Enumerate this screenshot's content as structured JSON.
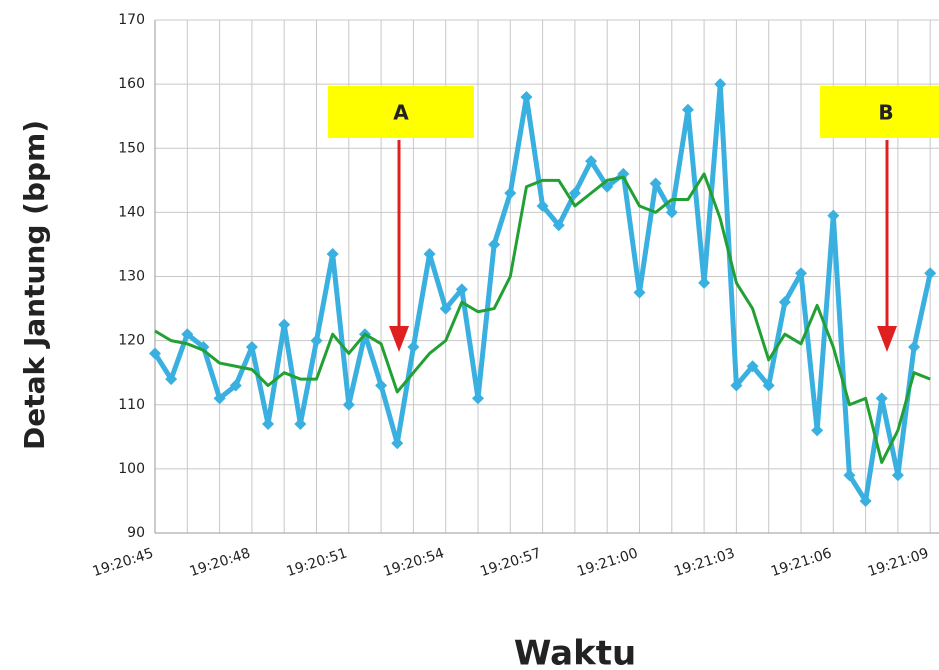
{
  "chart_data": {
    "type": "line",
    "ylabel": "Detak Jantung (bpm)",
    "xlabel": "Waktu",
    "categories": [
      "19:20:45",
      null,
      null,
      null,
      null,
      null,
      "19:20:48",
      null,
      null,
      null,
      null,
      null,
      "19:20:51",
      null,
      null,
      null,
      null,
      null,
      "19:20:54",
      null,
      null,
      null,
      null,
      null,
      "19:20:57",
      null,
      null,
      null,
      null,
      null,
      "19:21:00",
      null,
      null,
      null,
      null,
      null,
      "19:21:03",
      null,
      null,
      null,
      null,
      null,
      "19:21:06",
      null,
      null,
      null,
      null,
      null,
      "19:21:09"
    ],
    "series": [
      {
        "name": null,
        "color": "#3ab0e0",
        "values": [
          118,
          114,
          121,
          119,
          111,
          113,
          119,
          107,
          122.5,
          107,
          120,
          133.5,
          110,
          121,
          113,
          104,
          119,
          133.5,
          125,
          128,
          111,
          135,
          143,
          158,
          141,
          138,
          143,
          148,
          144,
          146,
          127.5,
          144.5,
          140,
          156,
          129,
          160,
          113,
          116,
          113,
          126,
          130.5,
          106,
          139.5,
          99,
          95,
          111,
          99,
          119,
          130.5
        ]
      },
      {
        "name": null,
        "color": "#22a033",
        "values": [
          121.5,
          120,
          119.5,
          118.5,
          116.5,
          116,
          115.5,
          113,
          115,
          114,
          114,
          121,
          118,
          121,
          119.5,
          112,
          115,
          118,
          120,
          126,
          124.5,
          125,
          130,
          144,
          145,
          145,
          141,
          143,
          145,
          145.5,
          141,
          140,
          142,
          142,
          146,
          139,
          129,
          125,
          117,
          121,
          119.5,
          125.5,
          119,
          110,
          111,
          101,
          106,
          115,
          114
        ]
      }
    ],
    "ylim": [
      90,
      170
    ],
    "yticks": [
      90,
      100,
      110,
      120,
      130,
      140,
      150,
      160,
      170
    ],
    "grid": true,
    "annotations": [
      "A",
      "B"
    ]
  }
}
